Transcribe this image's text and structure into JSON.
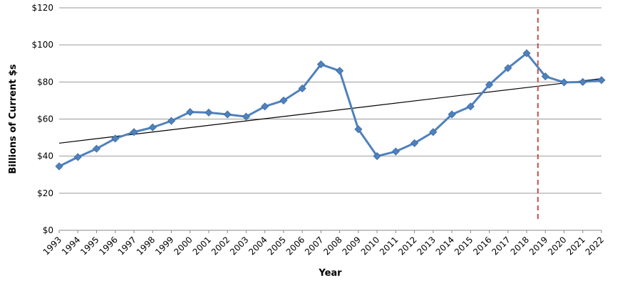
{
  "chart_data": {
    "type": "line",
    "xlabel": "Year",
    "ylabel": "Billions of Current $s",
    "x": [
      "1993",
      "1994",
      "1995",
      "1996",
      "1997",
      "1998",
      "1999",
      "2000",
      "2001",
      "2002",
      "2003",
      "2004",
      "2005",
      "2006",
      "2007",
      "2008",
      "2009",
      "2010",
      "2011",
      "2012",
      "2013",
      "2014",
      "2015",
      "2016",
      "2017",
      "2018",
      "2019",
      "2020",
      "2021",
      "2022"
    ],
    "series": [
      {
        "values": [
          34.5,
          39.5,
          44,
          49.5,
          53,
          55.5,
          59,
          63.8,
          63.5,
          62.5,
          61.3,
          66.8,
          70,
          76.5,
          89.5,
          86,
          54.5,
          40,
          42.5,
          47,
          53,
          62.5,
          66.8,
          78.5,
          87.5,
          95.5,
          83,
          79.8,
          80,
          81
        ],
        "color": "#4F81BD"
      }
    ],
    "trendline": {
      "type": "linear",
      "start_value": 47,
      "end_value": 81.8,
      "color": "#000000"
    },
    "marker_line": {
      "after_category": "2018",
      "position_fraction": 0.6,
      "style": "dashed",
      "color": "#C0504D"
    },
    "yticks": [
      "$0",
      "$20",
      "$40",
      "$60",
      "$80",
      "$100",
      "$120"
    ],
    "ylim": [
      0,
      120
    ],
    "grid": true,
    "legend": "none"
  }
}
